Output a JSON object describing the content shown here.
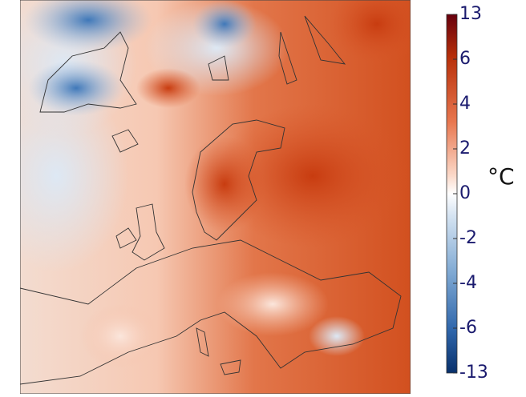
{
  "colorbar": {
    "label": "°C",
    "ticks": [
      13,
      6,
      4,
      2,
      0,
      -2,
      -4,
      -6,
      -13
    ]
  }
}
